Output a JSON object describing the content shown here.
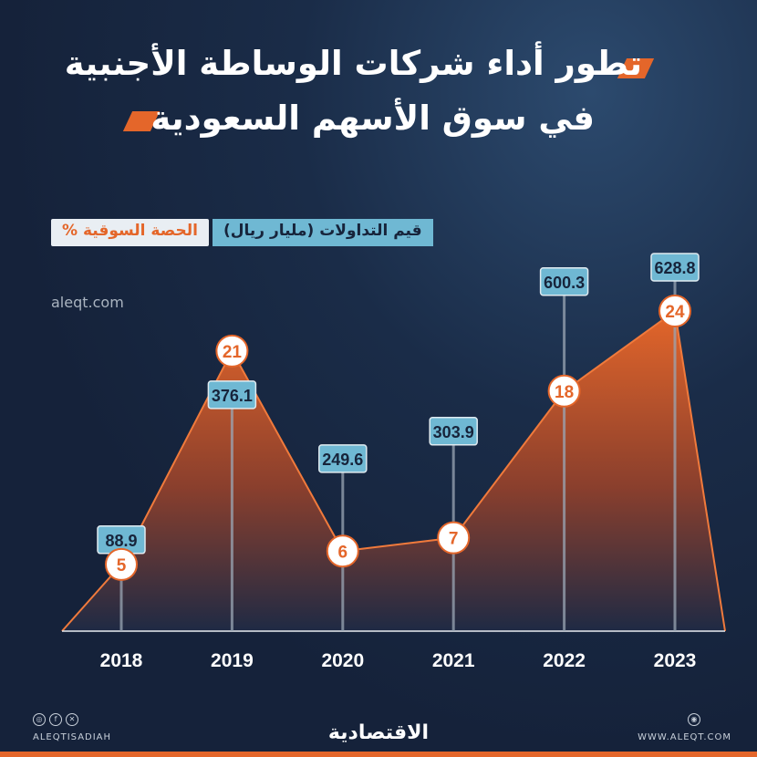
{
  "title": {
    "line1": "تطور أداء شركات الوساطة الأجنبية",
    "line2": "في سوق الأسهم السعودية"
  },
  "legend": {
    "value_label": "قيم التداولات (مليار ريال)",
    "share_label": "الحصة السوقية %"
  },
  "source": "aleqt.com",
  "footer": {
    "handle": "ALEQTISADIAH",
    "website": "WWW.ALEQT.COM",
    "brand": "الاقتصادية"
  },
  "colors": {
    "accent": "#e4662a",
    "value_badge": "#6fb8d3",
    "background": "#15223a"
  },
  "chart_data": {
    "type": "area",
    "categories": [
      "2018",
      "2019",
      "2020",
      "2021",
      "2022",
      "2023"
    ],
    "series": [
      {
        "name": "قيم التداولات (مليار ريال)",
        "values": [
          88.9,
          376.1,
          249.6,
          303.9,
          600.3,
          628.8
        ]
      },
      {
        "name": "الحصة السوقية %",
        "values": [
          5,
          21,
          6,
          7,
          18,
          24
        ]
      }
    ],
    "ylim": [
      0,
      24
    ]
  }
}
